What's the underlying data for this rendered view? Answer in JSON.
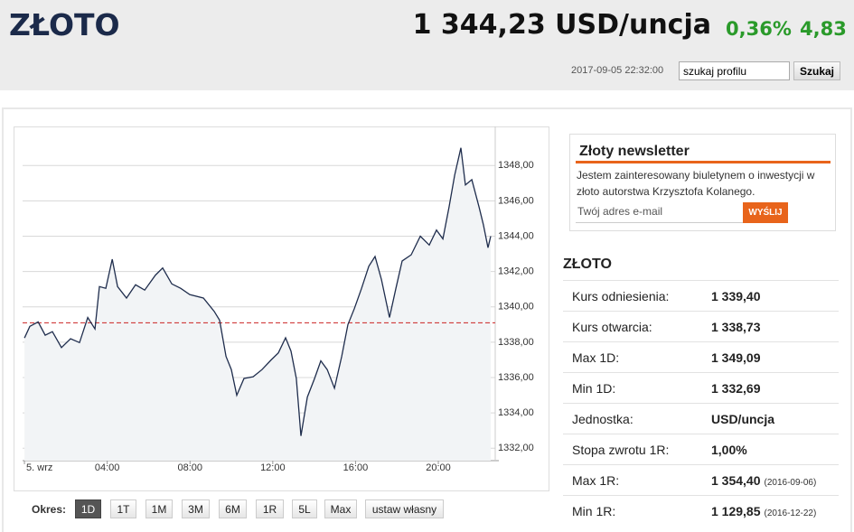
{
  "header": {
    "title": "ZŁOTO",
    "price": "1 344,23 USD/uncja",
    "change_pct": "0,36%",
    "change_abs": "4,83",
    "timestamp": "2017-09-05 22:32:00",
    "search_placeholder": "szukaj profilu",
    "search_button": "Szukaj"
  },
  "chart_data": {
    "type": "line",
    "color": "#1f2d4d",
    "area_color": "#f2f4f6",
    "reference_line": 1339.1,
    "reference_color": "#cc2222",
    "grid": true,
    "x": [
      0,
      0.26,
      0.66,
      1.0,
      1.35,
      1.79,
      2.23,
      2.66,
      3.06,
      3.41,
      3.62,
      3.93,
      4.24,
      4.5,
      4.93,
      5.37,
      5.81,
      6.33,
      6.68,
      7.12,
      7.55,
      7.99,
      8.65,
      9.17,
      9.43,
      9.74,
      10.0,
      10.26,
      10.61,
      11.05,
      11.48,
      11.92,
      12.27,
      12.62,
      12.88,
      13.14,
      13.36,
      13.67,
      14.02,
      14.32,
      14.63,
      14.98,
      15.33,
      15.63,
      15.94,
      16.29,
      16.64,
      16.94,
      17.25,
      17.64,
      17.95,
      18.25,
      18.69,
      19.13,
      19.56,
      19.91,
      20.22,
      20.52,
      20.79,
      21.09,
      21.31,
      21.62,
      21.97,
      22.18,
      22.4,
      22.53
    ],
    "values": [
      1338.24,
      1338.9,
      1339.15,
      1338.4,
      1338.6,
      1337.7,
      1338.2,
      1337.98,
      1339.4,
      1338.75,
      1341.15,
      1341.05,
      1342.7,
      1341.15,
      1340.5,
      1341.25,
      1340.95,
      1341.8,
      1342.2,
      1341.3,
      1341.05,
      1340.7,
      1340.5,
      1339.75,
      1339.25,
      1337.2,
      1336.45,
      1335.0,
      1335.95,
      1336.05,
      1336.45,
      1337.0,
      1337.4,
      1338.25,
      1337.5,
      1335.95,
      1332.7,
      1334.9,
      1335.95,
      1336.95,
      1336.45,
      1335.4,
      1337.2,
      1339.0,
      1339.9,
      1341.05,
      1342.3,
      1342.85,
      1341.55,
      1339.4,
      1341.05,
      1342.6,
      1342.95,
      1344.0,
      1343.5,
      1344.35,
      1343.85,
      1345.65,
      1347.45,
      1349.0,
      1346.9,
      1347.2,
      1345.65,
      1344.65,
      1343.35,
      1344.0
    ],
    "xlim": [
      -0.09,
      22.75
    ],
    "ylim": [
      1331.3,
      1349.7
    ],
    "xticks": [
      {
        "value": 0,
        "label": "5. wrz"
      },
      {
        "value": 4,
        "label": "04:00"
      },
      {
        "value": 8,
        "label": "08:00"
      },
      {
        "value": 12,
        "label": "12:00"
      },
      {
        "value": 16,
        "label": "16:00"
      },
      {
        "value": 20,
        "label": "20:00"
      }
    ],
    "yticks": [
      {
        "value": 1332,
        "label": "1332,00"
      },
      {
        "value": 1334,
        "label": "1334,00"
      },
      {
        "value": 1336,
        "label": "1336,00"
      },
      {
        "value": 1338,
        "label": "1338,00"
      },
      {
        "value": 1340,
        "label": "1340,00"
      },
      {
        "value": 1342,
        "label": "1342,00"
      },
      {
        "value": 1344,
        "label": "1344,00"
      },
      {
        "value": 1346,
        "label": "1346,00"
      },
      {
        "value": 1348,
        "label": "1348,00"
      }
    ]
  },
  "periods": {
    "label": "Okres:",
    "options": [
      "1D",
      "1T",
      "1M",
      "3M",
      "6M",
      "1R",
      "5L",
      "Max",
      "ustaw własny"
    ],
    "active": 0
  },
  "newsletter": {
    "title": "Złoty newsletter",
    "text": "Jestem zainteresowany biuletynem o inwestycji w złoto autorstwa Krzysztofa Kolanego.",
    "email_placeholder": "Twój adres e-mail",
    "button": "WYŚLIJ"
  },
  "quote": {
    "title": "ZŁOTO",
    "rows": [
      {
        "label": "Kurs odniesienia:",
        "value": "1 339,40"
      },
      {
        "label": "Kurs otwarcia:",
        "value": "1 338,73"
      },
      {
        "label": "Max 1D:",
        "value": "1 349,09"
      },
      {
        "label": "Min 1D:",
        "value": "1 332,69"
      },
      {
        "label": "Jednostka:",
        "value": "USD/uncja"
      },
      {
        "label": "Stopa zwrotu 1R:",
        "value": "1,00%"
      },
      {
        "label": "Max 1R:",
        "value": "1 354,40",
        "note": "(2016-09-06)"
      },
      {
        "label": "Min 1R:",
        "value": "1 129,85",
        "note": "(2016-12-22)"
      }
    ]
  }
}
